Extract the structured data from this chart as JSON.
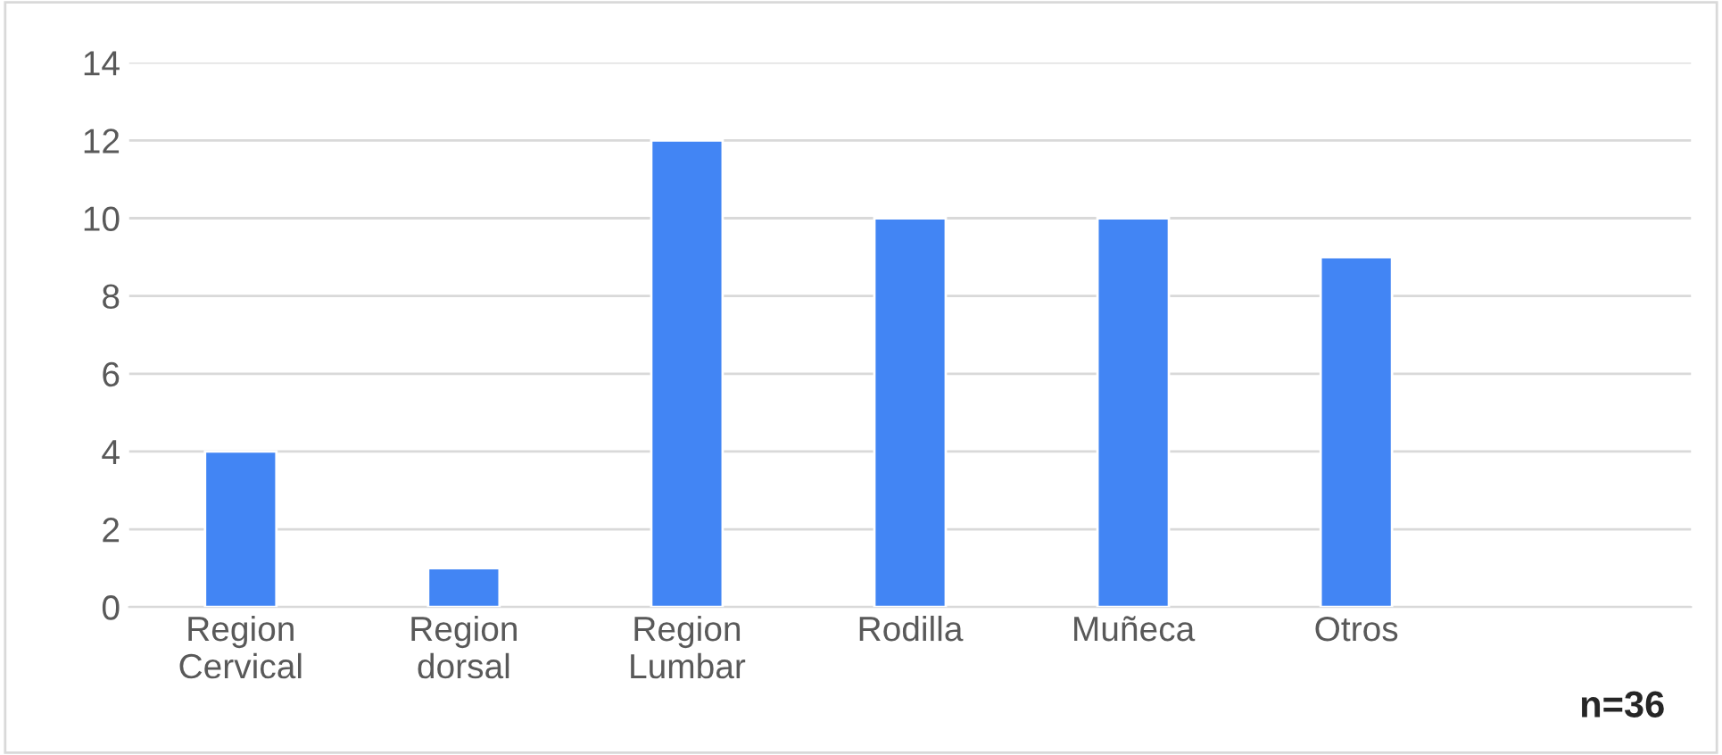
{
  "chart_data": {
    "type": "bar",
    "categories": [
      "Region\nCervical",
      "Region\ndorsal",
      "Region\nLumbar",
      "Rodilla",
      "Muñeca",
      "Otros",
      null
    ],
    "values": [
      4,
      1,
      12,
      10,
      10,
      9,
      null
    ],
    "color": "#4285f4",
    "ylim": [
      0,
      14
    ],
    "yticks": [
      0,
      2,
      4,
      6,
      8,
      10,
      12,
      14
    ],
    "grid": "y",
    "legend": false,
    "annotations": [
      "n=36"
    ]
  }
}
